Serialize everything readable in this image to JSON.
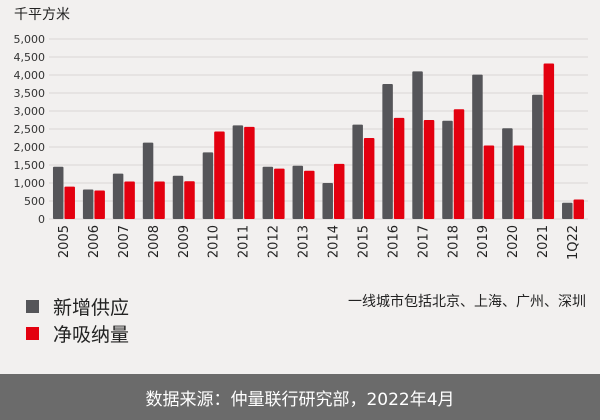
{
  "chart_data": {
    "type": "bar",
    "ylabel": "千平方米",
    "ylim": [
      0,
      5000
    ],
    "yticks": [
      "5,000",
      "4,500",
      "4,000",
      "3,500",
      "3,000",
      "2,500",
      "2,000",
      "1,500",
      "1,000",
      "500",
      "0"
    ],
    "grid": true,
    "categories": [
      "2005",
      "2006",
      "2007",
      "2008",
      "2009",
      "2010",
      "2011",
      "2012",
      "2013",
      "2014",
      "2015",
      "2016",
      "2017",
      "2018",
      "2019",
      "2020",
      "2021",
      "1Q22"
    ],
    "series": [
      {
        "name": "新增供应",
        "color": "#555559",
        "values": [
          1450,
          820,
          1260,
          2120,
          1200,
          1850,
          2600,
          1450,
          1480,
          1000,
          2620,
          3750,
          4100,
          2730,
          4010,
          2520,
          3450,
          450
        ]
      },
      {
        "name": "净吸纳量",
        "color": "#e3000f",
        "values": [
          900,
          790,
          1040,
          1040,
          1050,
          2430,
          2560,
          1400,
          1340,
          1530,
          2250,
          2810,
          2750,
          3050,
          2040,
          2040,
          4320,
          540
        ]
      }
    ]
  },
  "legend_position": "bottom-left",
  "note": "一线城市包括北京、上海、广州、深圳",
  "source": "数据来源：仲量联行研究部，2022年4月"
}
